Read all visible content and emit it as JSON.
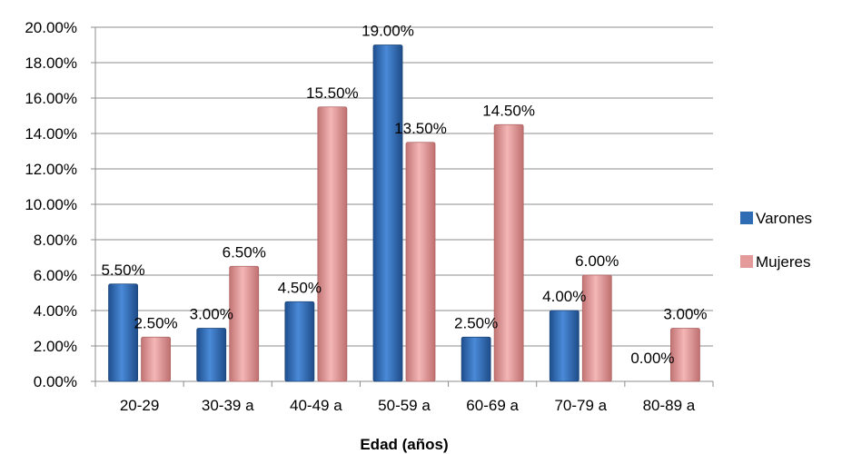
{
  "chart_data": {
    "type": "bar",
    "title": "",
    "xlabel": "Edad (años)",
    "ylabel": "",
    "ylim": [
      0,
      20
    ],
    "y_tick_step": 2,
    "y_tick_format": "percent_2dp",
    "grid": "horizontal",
    "legend_position": "right",
    "categories": [
      "20-29",
      "30-39 a",
      "40-49 a",
      "50-59 a",
      "60-69 a",
      "70-79 a",
      "80-89 a"
    ],
    "series": [
      {
        "name": "Varones",
        "color": "#2E6DB4",
        "values": [
          5.5,
          3.0,
          4.5,
          19.0,
          2.5,
          4.0,
          0.0
        ]
      },
      {
        "name": "Mujeres",
        "color": "#E59A9A",
        "values": [
          2.5,
          6.5,
          15.5,
          13.5,
          14.5,
          6.0,
          3.0
        ]
      }
    ]
  }
}
